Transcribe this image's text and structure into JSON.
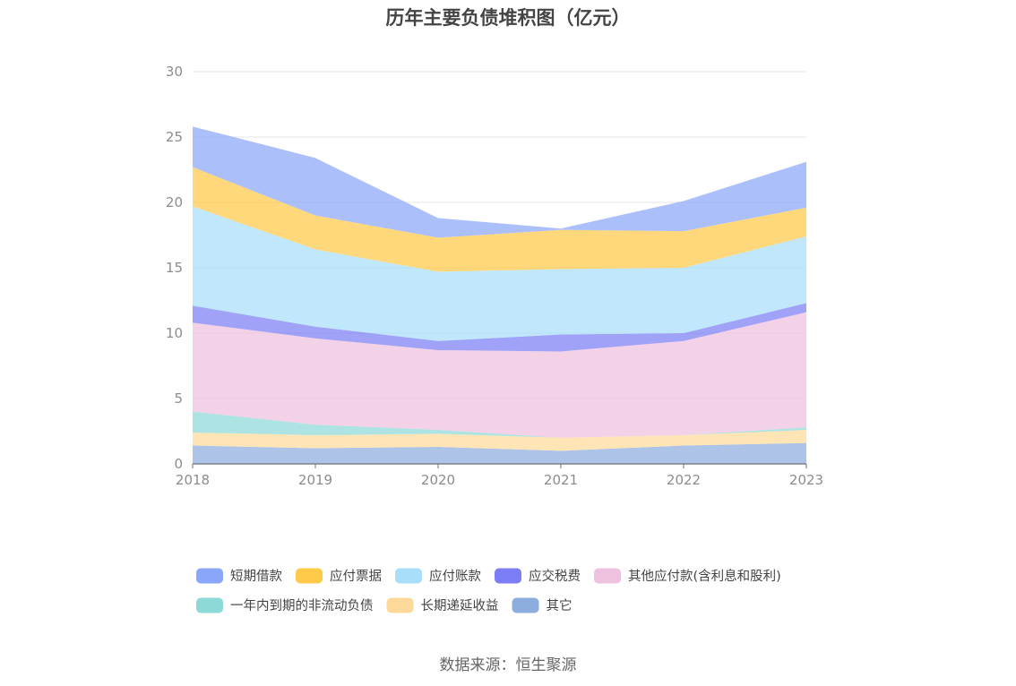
{
  "chart_data": {
    "type": "area",
    "stacked": true,
    "title": "历年主要负债堆积图（亿元）",
    "x": [
      "2018",
      "2019",
      "2020",
      "2021",
      "2022",
      "2023"
    ],
    "ylim": [
      0,
      30
    ],
    "yticks": [
      0,
      5,
      10,
      15,
      20,
      25,
      30
    ],
    "grid": true,
    "legend_position": "bottom",
    "series": [
      {
        "name": "其它",
        "color": "#8eaddf",
        "values": [
          1.4,
          1.2,
          1.3,
          1.0,
          1.4,
          1.6
        ]
      },
      {
        "name": "长期递延收益",
        "color": "#ffd99a",
        "values": [
          1.0,
          1.0,
          1.0,
          1.0,
          0.8,
          1.0
        ]
      },
      {
        "name": "一年内到期的非流动负债",
        "color": "#8dd9d8",
        "values": [
          1.6,
          0.8,
          0.3,
          0.0,
          0.0,
          0.2
        ]
      },
      {
        "name": "其他应付款(含利息和股利)",
        "color": "#eec1df",
        "values": [
          6.8,
          6.6,
          6.1,
          6.6,
          7.2,
          8.8
        ]
      },
      {
        "name": "应交税费",
        "color": "#7b7ef5",
        "values": [
          1.3,
          0.9,
          0.7,
          1.3,
          0.6,
          0.7
        ]
      },
      {
        "name": "应付账款",
        "color": "#a8defa",
        "values": [
          7.6,
          5.9,
          5.3,
          5.0,
          5.0,
          5.1
        ]
      },
      {
        "name": "应付票据",
        "color": "#ffc94a",
        "values": [
          3.0,
          2.6,
          2.6,
          3.0,
          2.8,
          2.2
        ]
      },
      {
        "name": "短期借款",
        "color": "#8aa6fa",
        "values": [
          3.1,
          4.4,
          1.5,
          0.1,
          2.3,
          3.5
        ]
      }
    ],
    "legend_order": [
      "短期借款",
      "应付票据",
      "应付账款",
      "应交税费",
      "其他应付款(含利息和股利)",
      "一年内到期的非流动负债",
      "长期递延收益",
      "其它"
    ]
  },
  "source": "数据来源：恒生聚源"
}
